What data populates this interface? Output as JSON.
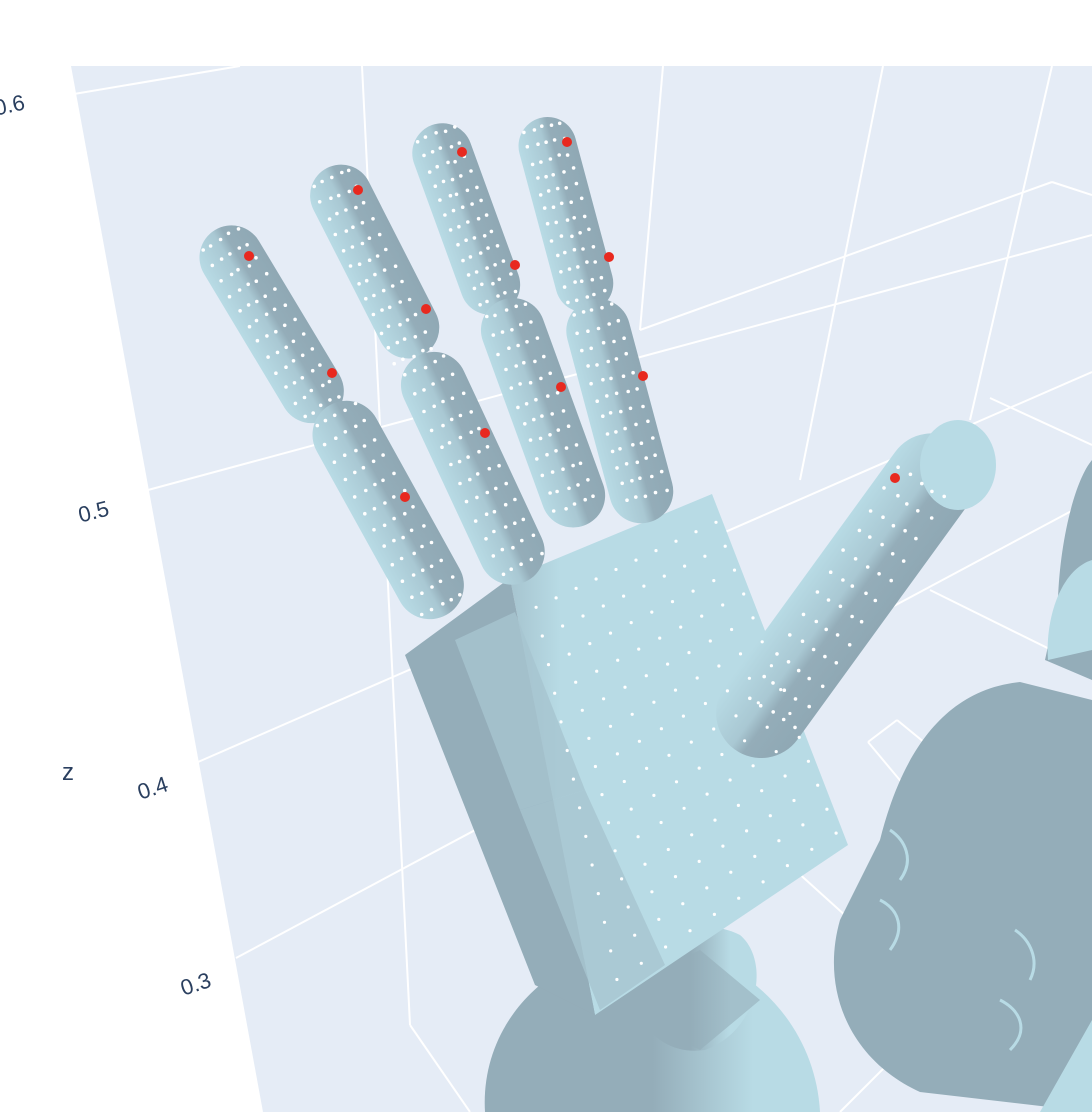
{
  "colors": {
    "background": "#ffffff",
    "pane": "#e5ecf6",
    "grid": "#ffffff",
    "mesh_light": "#b8dbe5",
    "mesh_dark": "#94adb9",
    "keypoint": "#e8291f",
    "surface_point": "#ffffff",
    "text": "#2a3f5f"
  },
  "scene": {
    "z_axis": {
      "title": "z",
      "ticks": [
        "0.6",
        "0.5",
        "0.4",
        "0.3"
      ]
    }
  }
}
